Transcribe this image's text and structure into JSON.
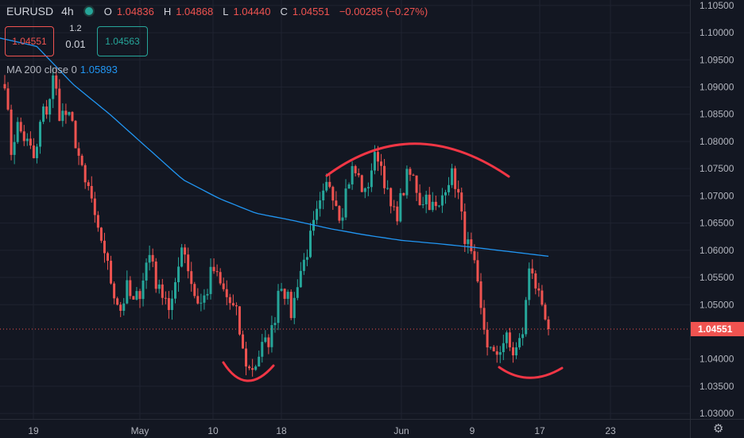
{
  "header": {
    "symbol": "EURUSD",
    "timeframe": "4h",
    "o_label": "O",
    "o_value": "1.04836",
    "h_label": "H",
    "h_value": "1.04868",
    "l_label": "L",
    "l_value": "1.04440",
    "c_label": "C",
    "c_value": "1.04551",
    "change": "−0.00285 (−0.27%)"
  },
  "trade": {
    "sell_price": "1.04551",
    "buy_price": "1.04563",
    "spread_top": "1.2",
    "spread_bottom": "0.01"
  },
  "indicator": {
    "label": "MA 200 close 0",
    "value": "1.05893"
  },
  "colors": {
    "background": "#131722",
    "up": "#26a69a",
    "down": "#ef5350",
    "ma": "#2196f3",
    "annotation": "#f23645",
    "grid": "#1f2330"
  },
  "chart_data": {
    "type": "candlestick",
    "symbol": "EURUSD",
    "interval": "4h",
    "ylim": [
      1.029,
      1.106
    ],
    "y_ticks": [
      "1.10500",
      "1.10000",
      "1.09500",
      "1.09000",
      "1.08500",
      "1.08000",
      "1.07500",
      "1.07000",
      "1.06500",
      "1.06000",
      "1.05500",
      "1.05000",
      "1.04551",
      "1.04000",
      "1.03500",
      "1.03000"
    ],
    "x_ticks": [
      "19",
      "May",
      "10",
      "18",
      "Jun",
      "9",
      "17",
      "23"
    ],
    "last_price": "1.04551",
    "price_path": [
      [
        1.0915,
        1.078
      ],
      [
        1.083,
        1.081
      ],
      [
        1.079,
        1.076
      ],
      [
        1.085,
        1.086
      ],
      [
        1.092,
        1.085
      ],
      [
        1.085,
        1.083
      ],
      [
        1.078,
        1.072
      ],
      [
        1.071,
        1.063
      ],
      [
        1.062,
        1.056
      ],
      [
        1.052,
        1.049
      ],
      [
        1.053,
        1.05
      ],
      [
        1.052,
        1.057
      ],
      [
        1.06,
        1.052
      ],
      [
        1.053,
        1.049
      ],
      [
        1.053,
        1.062
      ],
      [
        1.057,
        1.052
      ],
      [
        1.05,
        1.052
      ],
      [
        1.057,
        1.054
      ],
      [
        1.052,
        1.05
      ],
      [
        1.048,
        1.041
      ],
      [
        1.038,
        1.039
      ],
      [
        1.042,
        1.043
      ],
      [
        1.046,
        1.055
      ],
      [
        1.052,
        1.048
      ],
      [
        1.055,
        1.058
      ],
      [
        1.062,
        1.066
      ],
      [
        1.069,
        1.073
      ],
      [
        1.07,
        1.066
      ],
      [
        1.072,
        1.075
      ],
      [
        1.073,
        1.07
      ],
      [
        1.075,
        1.078
      ],
      [
        1.074,
        1.068
      ],
      [
        1.066,
        1.07
      ],
      [
        1.074,
        1.073
      ],
      [
        1.069,
        1.07
      ],
      [
        1.068,
        1.067
      ],
      [
        1.072,
        1.074
      ],
      [
        1.072,
        1.064
      ],
      [
        1.06,
        1.056
      ],
      [
        1.048,
        1.043
      ],
      [
        1.04,
        1.042
      ],
      [
        1.044,
        1.041
      ],
      [
        1.042,
        1.046
      ],
      [
        1.059,
        1.053
      ],
      [
        1.048,
        1.0455
      ]
    ],
    "ma200": [
      [
        1.099,
        1.0975
      ],
      [
        1.0905,
        1.085
      ],
      [
        1.079,
        1.073
      ],
      [
        1.0695,
        1.0668
      ],
      [
        1.0655,
        1.064
      ],
      [
        1.0628,
        1.0618
      ],
      [
        1.0612,
        1.0605
      ],
      [
        1.0597,
        1.0589
      ]
    ],
    "annotations": [
      {
        "type": "arc",
        "shape": "cup",
        "label": ""
      },
      {
        "type": "arc",
        "shape": "dome",
        "label": ""
      },
      {
        "type": "arc",
        "shape": "cup",
        "label": ""
      }
    ]
  }
}
